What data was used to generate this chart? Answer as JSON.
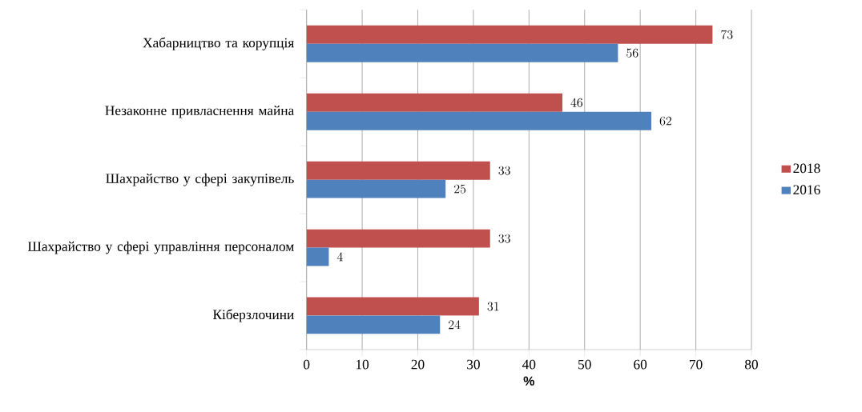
{
  "chart_data": {
    "type": "bar",
    "orientation": "horizontal",
    "categories": [
      "Хабарництво та корупція",
      "Незаконне привласнення майна",
      "Шахрайство у сфері закупівель",
      "Шахрайство у сфері управління персоналом",
      "Кіберзлочини"
    ],
    "series": [
      {
        "name": "2018",
        "color": "#c0504d",
        "values": [
          73,
          46,
          33,
          33,
          31
        ]
      },
      {
        "name": "2016",
        "color": "#4f81bd",
        "values": [
          56,
          62,
          25,
          4,
          24
        ]
      }
    ],
    "xlabel": "%",
    "xlim": [
      0,
      80
    ],
    "xticks": [
      0,
      10,
      20,
      30,
      40,
      50,
      60,
      70,
      80
    ],
    "grid": "x",
    "legend": "right",
    "data_labels": true
  }
}
